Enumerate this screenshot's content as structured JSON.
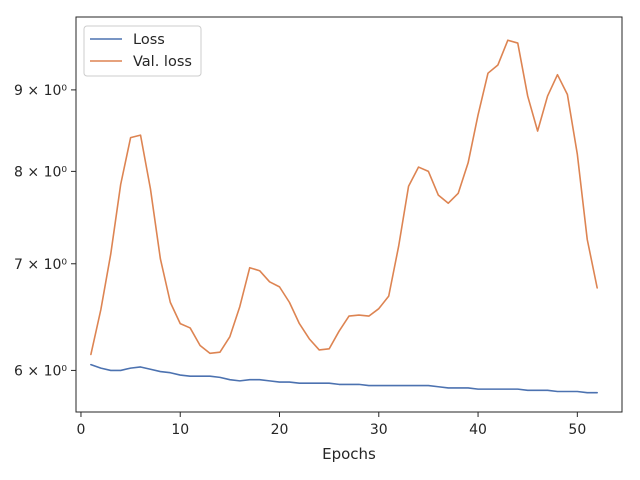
{
  "chart_data": {
    "type": "line",
    "title": "",
    "xlabel": "Epochs",
    "ylabel": "",
    "yscale": "log",
    "xlim": [
      -0.5,
      54.5
    ],
    "ylim": [
      5.65,
      10.0
    ],
    "grid": false,
    "legend_position": "top-left",
    "x_ticks": [
      {
        "value": 0,
        "label": "0"
      },
      {
        "value": 10,
        "label": "10"
      },
      {
        "value": 20,
        "label": "20"
      },
      {
        "value": 30,
        "label": "30"
      },
      {
        "value": 40,
        "label": "40"
      },
      {
        "value": 50,
        "label": "50"
      }
    ],
    "y_ticks": [
      {
        "value": 6,
        "label": "6 × 10⁰"
      },
      {
        "value": 7,
        "label": "7 × 10⁰"
      },
      {
        "value": 8,
        "label": "8 × 10⁰"
      },
      {
        "value": 9,
        "label": "9 × 10⁰"
      }
    ],
    "x": [
      1,
      2,
      3,
      4,
      5,
      6,
      7,
      8,
      9,
      10,
      11,
      12,
      13,
      14,
      15,
      16,
      17,
      18,
      19,
      20,
      21,
      22,
      23,
      24,
      25,
      26,
      27,
      28,
      29,
      30,
      31,
      32,
      33,
      34,
      35,
      36,
      37,
      38,
      39,
      40,
      41,
      42,
      43,
      44,
      45,
      46,
      47,
      48,
      49,
      50,
      51,
      52
    ],
    "series": [
      {
        "name": "Loss",
        "color": "#4c72b0",
        "values": [
          6.05,
          6.02,
          6.0,
          6.0,
          6.02,
          6.03,
          6.01,
          5.99,
          5.98,
          5.96,
          5.95,
          5.95,
          5.95,
          5.94,
          5.92,
          5.91,
          5.92,
          5.92,
          5.91,
          5.9,
          5.9,
          5.89,
          5.89,
          5.89,
          5.89,
          5.88,
          5.88,
          5.88,
          5.87,
          5.87,
          5.87,
          5.87,
          5.87,
          5.87,
          5.87,
          5.86,
          5.85,
          5.85,
          5.85,
          5.84,
          5.84,
          5.84,
          5.84,
          5.84,
          5.83,
          5.83,
          5.83,
          5.82,
          5.82,
          5.82,
          5.81,
          5.81
        ]
      },
      {
        "name": "Val. loss",
        "color": "#dd8452",
        "values": [
          6.14,
          6.55,
          7.1,
          7.85,
          8.4,
          8.43,
          7.8,
          7.05,
          6.62,
          6.42,
          6.38,
          6.22,
          6.15,
          6.16,
          6.3,
          6.58,
          6.96,
          6.93,
          6.82,
          6.77,
          6.62,
          6.42,
          6.28,
          6.18,
          6.19,
          6.35,
          6.49,
          6.5,
          6.49,
          6.56,
          6.68,
          7.18,
          7.83,
          8.05,
          8.0,
          7.73,
          7.64,
          7.75,
          8.1,
          8.68,
          9.22,
          9.33,
          9.67,
          9.63,
          8.92,
          8.48,
          8.92,
          9.2,
          8.94,
          8.2,
          7.25,
          6.76
        ]
      }
    ]
  }
}
